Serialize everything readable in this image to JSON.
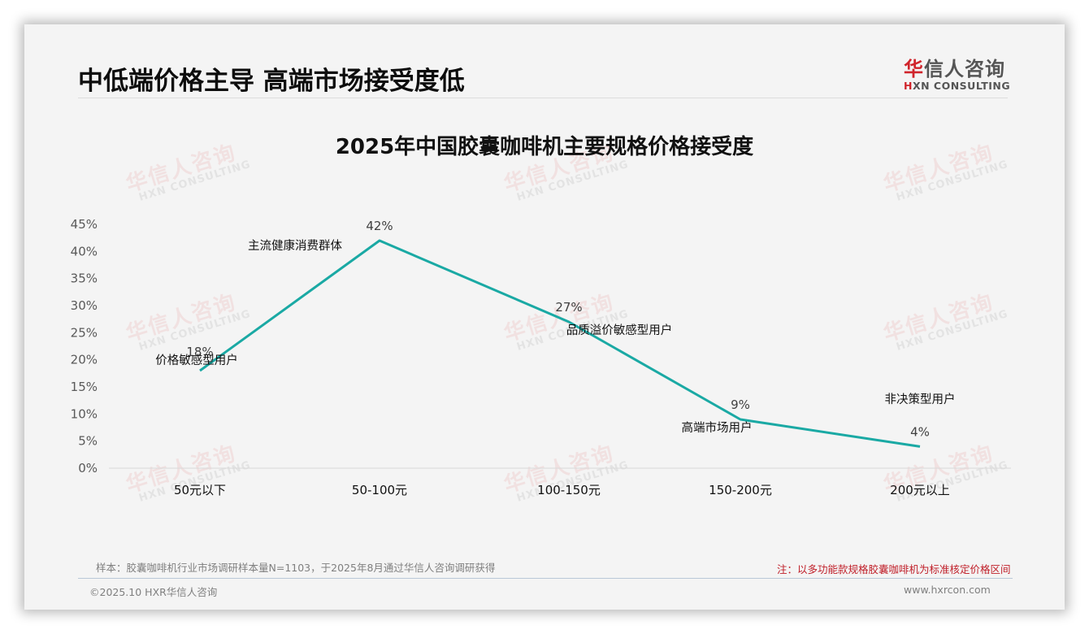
{
  "header": {
    "page_title": "中低端价格主导 高端市场接受度低",
    "logo": {
      "cn_brand_first": "华",
      "cn_brand_rest": "信人咨询",
      "en_first": "H",
      "en_rest": "XN CONSULTING"
    }
  },
  "watermark": {
    "cn": "华信人咨询",
    "en": "HXN CONSULTING"
  },
  "chart_data": {
    "type": "line",
    "title": "2025年中国胶囊咖啡机主要规格价格接受度",
    "xlabel": "",
    "ylabel": "",
    "categories": [
      "50元以下",
      "50-100元",
      "100-150元",
      "150-200元",
      "200元以上"
    ],
    "values": [
      18,
      42,
      27,
      9,
      4
    ],
    "value_labels": [
      "18%",
      "42%",
      "27%",
      "9%",
      "4%"
    ],
    "annotations": [
      "价格敏感型用户",
      "主流健康消费群体",
      "品质溢价敏感型用户",
      "高端市场用户",
      "非决策型用户"
    ],
    "ylim": [
      0,
      45
    ],
    "yticks": [
      "0%",
      "5%",
      "10%",
      "15%",
      "20%",
      "25%",
      "30%",
      "35%",
      "40%",
      "45%"
    ],
    "grid": false,
    "legend": "none",
    "line_color": "#1aa9a4"
  },
  "footer": {
    "sample_note": "样本：胶囊咖啡机行业市场调研样本量N=1103，于2025年8月通过华信人咨询调研获得",
    "red_note": "注：以多功能款规格胶囊咖啡机为标准核定价格区间",
    "copyright": "©2025.10 HXR华信人咨询",
    "website": "www.hxrcon.com"
  }
}
